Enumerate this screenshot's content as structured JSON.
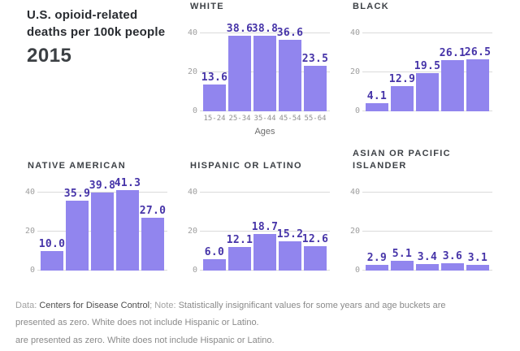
{
  "header": {
    "title_lines": [
      "U.S. opioid-related",
      "deaths per 100k people"
    ],
    "year": "2015"
  },
  "chart_data": {
    "type": "bar",
    "title": "U.S. opioid-related deaths per 100k people, 2015",
    "categories": [
      "15-24",
      "25-34",
      "35-44",
      "45-54",
      "55-64"
    ],
    "xlabel": "Ages",
    "ylabel": "",
    "ylim": [
      0,
      40
    ],
    "yticks": [
      0,
      20,
      40
    ],
    "grid": "horizontal",
    "legend": "none (small multiples, one panel per series)",
    "series": [
      {
        "name": "WHITE",
        "values": [
          13.6,
          38.6,
          38.8,
          36.6,
          23.5
        ]
      },
      {
        "name": "BLACK",
        "values": [
          4.1,
          12.9,
          19.5,
          26.1,
          26.5
        ]
      },
      {
        "name": "NATIVE AMERICAN",
        "values": [
          10.0,
          35.9,
          39.8,
          41.3,
          27.0
        ]
      },
      {
        "name": "HISPANIC OR LATINO",
        "values": [
          6.0,
          12.1,
          18.7,
          15.2,
          12.6
        ]
      },
      {
        "name": "ASIAN OR PACIFIC ISLANDER",
        "values": [
          2.9,
          5.1,
          3.4,
          3.6,
          3.1
        ]
      }
    ]
  },
  "colors": {
    "bar": "#9185ee",
    "bar_label": "#4634a8",
    "gridline": "#dadada",
    "chart_title": "#3d4146"
  },
  "footer": {
    "data_prefix": "Data: ",
    "source": "Centers for Disease Control",
    "note_prefix": "; Note: ",
    "note": "Statistically insignificant values for some years and age buckets are presented as zero. White does not include Hispanic or Latino.",
    "repeated_line": "are presented as zero. White does not include Hispanic or Latino."
  }
}
